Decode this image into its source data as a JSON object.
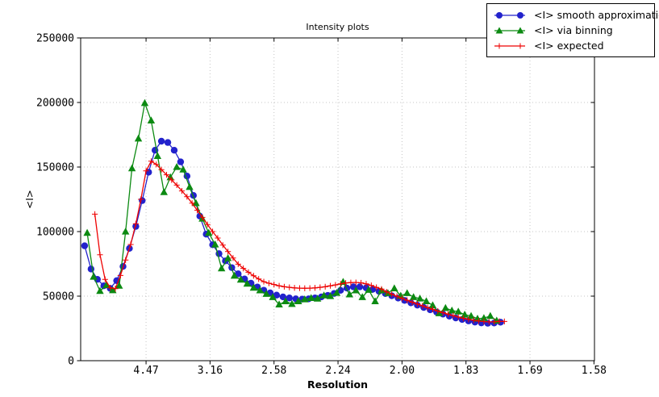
{
  "chart_data": {
    "type": "line",
    "title": "Intensity plots",
    "xlabel": "Resolution",
    "ylabel": "<I>",
    "grid": {
      "show": true,
      "color": "#c4c4c4",
      "style": "dotted"
    },
    "legend": {
      "position": "top-right"
    },
    "x_axis": {
      "scale": "resolution (d), spaced linearly in 1/d^2",
      "range_s": [
        -0.0011,
        0.4004
      ],
      "ticks": [
        {
          "s": 0.05,
          "label": "4.47"
        },
        {
          "s": 0.1,
          "label": "3.16"
        },
        {
          "s": 0.15,
          "label": "2.58"
        },
        {
          "s": 0.2,
          "label": "2.24"
        },
        {
          "s": 0.25,
          "label": "2.00"
        },
        {
          "s": 0.3,
          "label": "1.83"
        },
        {
          "s": 0.35,
          "label": "1.69"
        },
        {
          "s": 0.4,
          "label": "1.58"
        }
      ]
    },
    "y_axis": {
      "min": 0,
      "max": 250000,
      "ticks": [
        {
          "v": 0,
          "label": "0"
        },
        {
          "v": 50000,
          "label": "50000"
        },
        {
          "v": 100000,
          "label": "100000"
        },
        {
          "v": 150000,
          "label": "150000"
        },
        {
          "v": 200000,
          "label": "200000"
        },
        {
          "v": 250000,
          "label": "250000"
        }
      ]
    },
    "series": [
      {
        "name": "<I> smooth approximation",
        "color": "#2222cc",
        "marker": "circle",
        "s_start": 0.002,
        "s_step": 0.005,
        "values": [
          89000,
          71000,
          63000,
          58000,
          56000,
          62000,
          73000,
          87000,
          104000,
          124000,
          146000,
          163000,
          170000,
          169000,
          163000,
          154000,
          143000,
          128000,
          112000,
          98000,
          89800,
          82900,
          77300,
          72100,
          67300,
          63300,
          60000,
          57100,
          54600,
          52500,
          50800,
          49400,
          48600,
          47900,
          47700,
          47900,
          48600,
          49400,
          50600,
          52100,
          54500,
          56200,
          57200,
          57200,
          56400,
          55200,
          53700,
          52000,
          50300,
          48500,
          46700,
          44800,
          43000,
          41200,
          39400,
          37700,
          36100,
          34500,
          33100,
          31900,
          30800,
          29900,
          29300,
          29000,
          29200,
          29800
        ]
      },
      {
        "name": "<I> via binning",
        "color": "#0c8a12",
        "marker": "triangle",
        "s_start": 0.004,
        "s_step": 0.005,
        "values": [
          99000,
          65000,
          54000,
          58500,
          54500,
          58000,
          100000,
          149000,
          172000,
          199500,
          186000,
          158500,
          130500,
          142000,
          150000,
          148000,
          134500,
          122000,
          110000,
          99000,
          90000,
          71500,
          79400,
          65800,
          62700,
          59600,
          56500,
          54400,
          51700,
          49200,
          43500,
          46000,
          43900,
          46000,
          47500,
          48500,
          48000,
          50500,
          50000,
          52500,
          61000,
          51300,
          54400,
          49200,
          54800,
          46000,
          54400,
          52300,
          56000,
          50200,
          52300,
          49200,
          48100,
          46000,
          42900,
          36700,
          40800,
          38800,
          38000,
          35600,
          34600,
          32500,
          33000,
          34600,
          31000
        ]
      },
      {
        "name": "<I> expected",
        "color": "#ee0000",
        "marker": "plus",
        "s_start": 0.01,
        "s_step": 0.004,
        "values": [
          113500,
          82000,
          63000,
          56500,
          55800,
          66000,
          78000,
          90000,
          106000,
          125000,
          147000,
          154500,
          152000,
          148000,
          144000,
          140000,
          136000,
          131500,
          127000,
          122000,
          116500,
          111000,
          105500,
          100000,
          95000,
          89500,
          84500,
          79500,
          74800,
          71500,
          68500,
          65800,
          63300,
          61200,
          60000,
          59000,
          58000,
          57300,
          56800,
          56400,
          56200,
          56100,
          56200,
          56400,
          56800,
          57300,
          58000,
          58700,
          59500,
          60200,
          60500,
          60600,
          60300,
          59500,
          58300,
          56800,
          55500,
          53300,
          51500,
          49900,
          48300,
          46800,
          45300,
          43900,
          42500,
          41100,
          39800,
          38400,
          37200,
          36000,
          34900,
          33800,
          32800,
          32000,
          31300,
          30700,
          30300,
          30000,
          30100,
          30500,
          30400
        ]
      }
    ]
  }
}
